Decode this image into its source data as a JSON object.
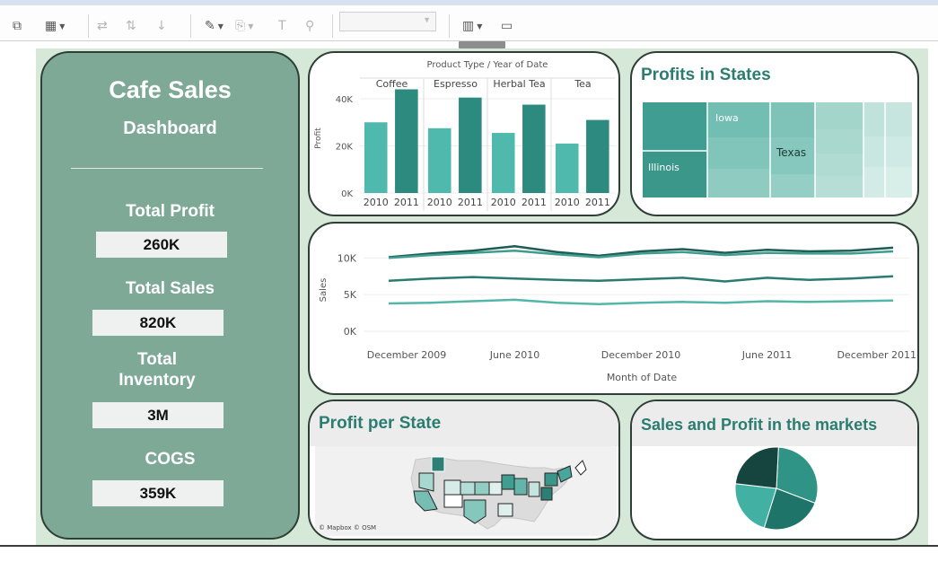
{
  "toolbar": {
    "buttons": [
      {
        "name": "duplicate-sheet-icon",
        "glyph": "⧉",
        "dim": false,
        "arrow": false
      },
      {
        "name": "clear-sheet-icon",
        "glyph": "▦",
        "dim": false,
        "arrow": true
      },
      {
        "name": "swap-axes-icon",
        "glyph": "⇄",
        "dim": true,
        "arrow": false
      },
      {
        "name": "sort-ascending-icon",
        "glyph": "⇅",
        "dim": true,
        "arrow": false
      },
      {
        "name": "sort-descending-icon",
        "glyph": "↓",
        "dim": true,
        "arrow": false
      },
      {
        "name": "highlight-icon",
        "glyph": "✎",
        "dim": false,
        "arrow": true
      },
      {
        "name": "group-icon",
        "glyph": "⎘",
        "dim": true,
        "arrow": true
      },
      {
        "name": "label-icon",
        "glyph": "T",
        "dim": true,
        "arrow": false
      },
      {
        "name": "pin-icon",
        "glyph": "⚲",
        "dim": true,
        "arrow": false
      },
      {
        "name": "show-me-icon",
        "glyph": "▥",
        "dim": false,
        "arrow": true
      },
      {
        "name": "presentation-icon",
        "glyph": "▭",
        "dim": false,
        "arrow": false
      }
    ],
    "fit_select_value": ""
  },
  "sidebar": {
    "title": "Cafe Sales",
    "subtitle": "Dashboard",
    "kpis": [
      {
        "label": "Total Profit",
        "value": "260K"
      },
      {
        "label": "Total Sales",
        "value": "820K"
      },
      {
        "label": "Total Inventory",
        "value": "3M"
      },
      {
        "label": "COGS",
        "value": "359K"
      }
    ]
  },
  "bar_chart": {
    "chart_data": {
      "type": "bar",
      "header": "Product Type / Year of Date",
      "groups": [
        "Coffee",
        "Espresso",
        "Herbal Tea",
        "Tea"
      ],
      "categories": [
        "2010",
        "2011",
        "2010",
        "2011",
        "2010",
        "2011",
        "2010",
        "2011"
      ],
      "values": [
        30000,
        44000,
        27500,
        40500,
        25500,
        37500,
        21000,
        31000
      ],
      "ylabel": "Profit",
      "yticks": [
        "0K",
        "20K",
        "40K"
      ],
      "ylim": [
        0,
        48000
      ],
      "colors": [
        "#4fb9ae",
        "#2c8a7e"
      ]
    }
  },
  "treemap": {
    "title": "Profits in States",
    "labels": [
      "Iowa",
      "Illinois",
      "Texas"
    ]
  },
  "line_chart": {
    "chart_data": {
      "type": "line",
      "x": [
        "Dec 2009",
        "Feb 2010",
        "Apr 2010",
        "Jun 2010",
        "Aug 2010",
        "Oct 2010",
        "Dec 2010",
        "Feb 2011",
        "Apr 2011",
        "Jun 2011",
        "Aug 2011",
        "Oct 2011",
        "Dec 2011"
      ],
      "xticks": [
        "December 2009",
        "June 2010",
        "December 2010",
        "June 2011",
        "December 2011"
      ],
      "xlabel": "Month of Date",
      "ylabel": "Sales",
      "yticks": [
        "0K",
        "5K",
        "10K"
      ],
      "ylim": [
        0,
        12000
      ],
      "series": [
        {
          "values": [
            10100,
            10600,
            11000,
            11600,
            10800,
            10300,
            10900,
            11200,
            10700,
            11100,
            10900,
            11000,
            11400
          ],
          "color": "#1d5c54"
        },
        {
          "values": [
            10000,
            10400,
            10700,
            11000,
            10500,
            10100,
            10600,
            10800,
            10400,
            10700,
            10600,
            10600,
            10900
          ],
          "color": "#3f9d90"
        },
        {
          "values": [
            6900,
            7200,
            7400,
            7200,
            7000,
            6900,
            7100,
            7300,
            6800,
            7300,
            7000,
            7200,
            7500
          ],
          "color": "#2a7b70"
        },
        {
          "values": [
            3800,
            3900,
            4100,
            4300,
            3900,
            3700,
            3900,
            4000,
            3900,
            4100,
            4000,
            4100,
            4200
          ],
          "color": "#52b6a8"
        }
      ]
    }
  },
  "map": {
    "title": "Profit per State",
    "attribution": "© Mapbox © OSM"
  },
  "pie_chart": {
    "title": "Sales and Profit in the markets",
    "chart_data": {
      "type": "pie",
      "values": [
        30,
        24,
        22,
        24
      ],
      "colors": [
        "#2f9486",
        "#1f7469",
        "#42b0a2",
        "#16453f"
      ]
    }
  }
}
